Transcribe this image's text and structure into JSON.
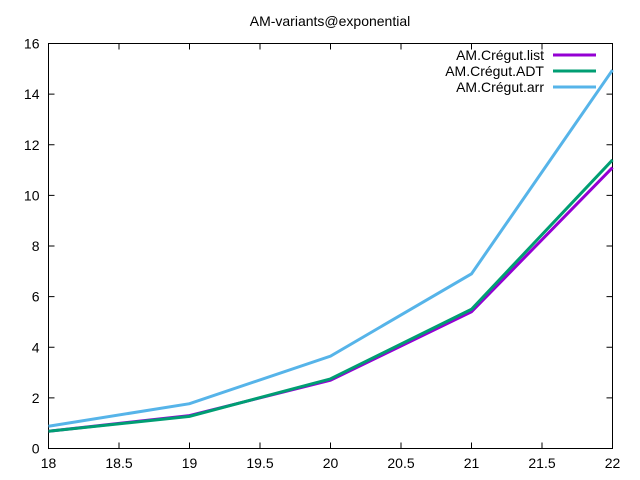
{
  "chart_data": {
    "type": "line",
    "title": "AM-variants@exponential",
    "xlabel": "",
    "ylabel": "",
    "xlim": [
      18,
      22
    ],
    "ylim": [
      0,
      16
    ],
    "x_ticks": [
      "18",
      "18.5",
      "19",
      "19.5",
      "20",
      "20.5",
      "21",
      "21.5",
      "22"
    ],
    "y_ticks": [
      "0",
      "2",
      "4",
      "6",
      "8",
      "10",
      "12",
      "14",
      "16"
    ],
    "grid": false,
    "legend_position": "top-right",
    "x": [
      18,
      19,
      20,
      21,
      22
    ],
    "series": [
      {
        "name": "AM.Crégut.list",
        "color": "#9400d3",
        "values": [
          0.68,
          1.3,
          2.7,
          5.4,
          11.1
        ]
      },
      {
        "name": "AM.Crégut.ADT",
        "color": "#009e73",
        "values": [
          0.68,
          1.27,
          2.75,
          5.5,
          11.4
        ]
      },
      {
        "name": "AM.Crégut.arr",
        "color": "#56b4e9",
        "values": [
          0.88,
          1.77,
          3.65,
          6.9,
          14.95
        ]
      }
    ]
  }
}
